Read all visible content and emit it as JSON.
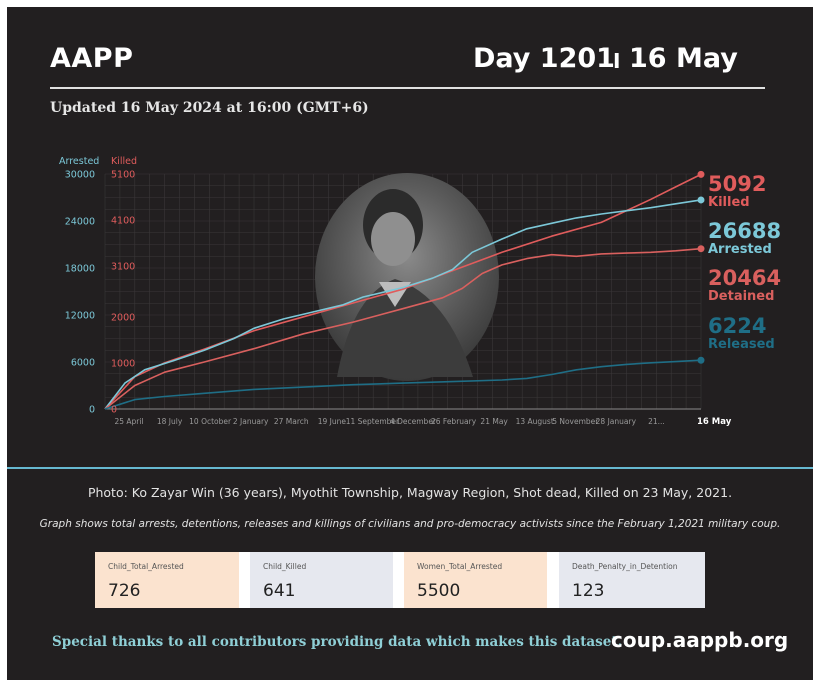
{
  "header": {
    "brand": "AAPP",
    "day_label": "Day 1201",
    "separator": "I",
    "date_label": "16 May",
    "updated": "Updated 16 May 2024 at 16:00 (GMT+6)"
  },
  "chart_data": {
    "type": "line",
    "title": "",
    "left_axis_label": "Arrested",
    "right_axis_label": "Killed",
    "left_ticks": [
      0,
      6000,
      12000,
      18000,
      24000,
      30000
    ],
    "left_tick_labels": [
      "0",
      "6000",
      "12000",
      "18000",
      "24000",
      "30000"
    ],
    "right_ticks": [
      0,
      1000,
      2000,
      3100,
      4100,
      5100
    ],
    "right_tick_labels": [
      "0",
      "1000",
      "2000",
      "3100",
      "4100",
      "5100"
    ],
    "ylim_left": [
      0,
      30000
    ],
    "ylim_right": [
      0,
      5100
    ],
    "x_ticks": [
      "25 April",
      "18 July",
      "10 October",
      "2 January",
      "27 March",
      "19 June",
      "11 September",
      "4 December",
      "26 February",
      "21 May",
      "13 August",
      "5 November",
      "28 January",
      "21...",
      "16 May"
    ],
    "x_range_days": [
      0,
      1201
    ],
    "grid": true,
    "series": [
      {
        "name": "Killed",
        "axis": "right",
        "color": "#e05c5c",
        "x": [
          0,
          60,
          120,
          200,
          300,
          400,
          500,
          600,
          700,
          800,
          900,
          1000,
          1050,
          1100,
          1150,
          1201
        ],
        "y": [
          0,
          700,
          1000,
          1300,
          1700,
          2000,
          2300,
          2600,
          3000,
          3400,
          3750,
          4050,
          4300,
          4550,
          4820,
          5092
        ]
      },
      {
        "name": "Arrested",
        "axis": "left",
        "color": "#7cc8d8",
        "x": [
          0,
          40,
          80,
          140,
          200,
          260,
          300,
          360,
          420,
          480,
          520,
          560,
          600,
          660,
          700,
          740,
          800,
          850,
          900,
          950,
          1000,
          1050,
          1100,
          1150,
          1201
        ],
        "y": [
          0,
          3300,
          5000,
          6200,
          7500,
          9000,
          10300,
          11500,
          12400,
          13300,
          14300,
          14900,
          15500,
          16700,
          17800,
          20000,
          21700,
          23000,
          23700,
          24400,
          24900,
          25300,
          25700,
          26200,
          26688
        ]
      },
      {
        "name": "Detained",
        "axis": "left",
        "color": "#d9605e",
        "x": [
          0,
          60,
          120,
          200,
          300,
          400,
          500,
          600,
          680,
          720,
          760,
          800,
          850,
          900,
          950,
          1000,
          1050,
          1100,
          1150,
          1201
        ],
        "y": [
          0,
          3000,
          4700,
          6000,
          7700,
          9600,
          11100,
          12800,
          14200,
          15400,
          17300,
          18400,
          19200,
          19700,
          19500,
          19800,
          19900,
          20000,
          20200,
          20464
        ]
      },
      {
        "name": "Released",
        "axis": "left",
        "color": "#1f6e86",
        "x": [
          0,
          60,
          120,
          200,
          300,
          400,
          500,
          600,
          700,
          800,
          850,
          900,
          950,
          1000,
          1050,
          1100,
          1150,
          1201
        ],
        "y": [
          0,
          1200,
          1600,
          2000,
          2500,
          2800,
          3100,
          3300,
          3500,
          3700,
          3900,
          4400,
          5000,
          5400,
          5700,
          5900,
          6050,
          6224
        ]
      }
    ],
    "end_labels": [
      {
        "value": "5092",
        "label": "Killed",
        "color": "#e05c5c"
      },
      {
        "value": "26688",
        "label": "Arrested",
        "color": "#7cc8d8"
      },
      {
        "value": "20464",
        "label": "Detained",
        "color": "#d9605e"
      },
      {
        "value": "6224",
        "label": "Released",
        "color": "#1f6e86"
      }
    ]
  },
  "caption": "Photo: Ko Zayar Win (36 years), Myothit Township, Magway Region, Shot dead, Killed on 23 May, 2021.",
  "note": "Graph shows total arrests, detentions, releases and killings of civilians and pro-democracy activists since the February 1,2021 military coup.",
  "stats": [
    {
      "label": "Child_Total_Arrested",
      "value": "726"
    },
    {
      "label": "Child_Killed",
      "value": "641"
    },
    {
      "label": "Women_Total_Arrested",
      "value": "5500"
    },
    {
      "label": "Death_Penalty_in_Detention",
      "value": "123"
    }
  ],
  "footer": {
    "thanks": "Special thanks to all contributors providing data which makes this dataset.",
    "site": "coup.aappb.org"
  },
  "colors": {
    "background": "#221f20",
    "accent": "#66b8d0"
  }
}
